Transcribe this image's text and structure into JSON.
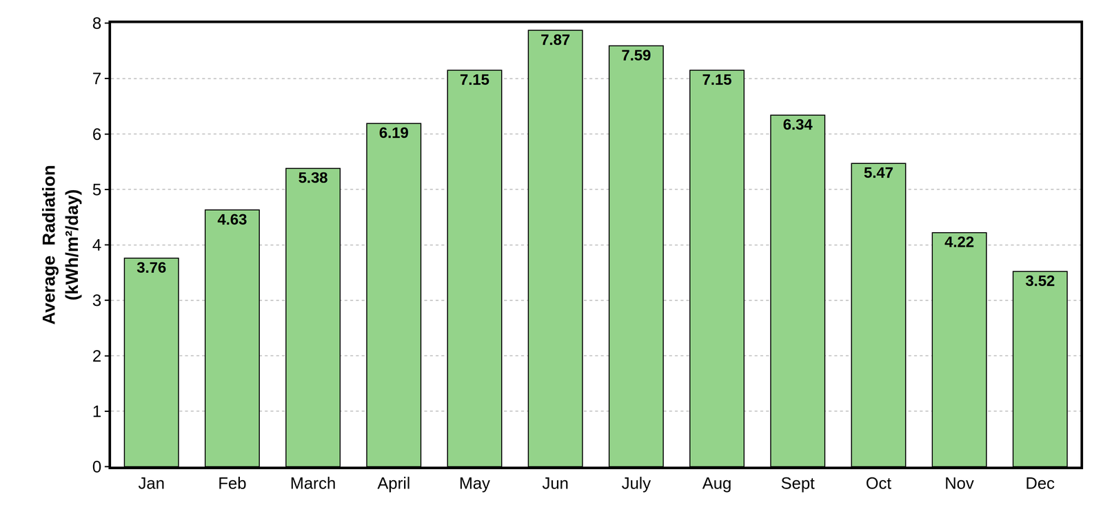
{
  "chart_data": {
    "type": "bar",
    "y_label": [
      "Average  Radiation",
      "(kWh/m²/day)"
    ],
    "categories": [
      "Jan",
      "Feb",
      "March",
      "April",
      "May",
      "Jun",
      "July",
      "Aug",
      "Sept",
      "Oct",
      "Nov",
      "Dec"
    ],
    "values": [
      3.76,
      4.63,
      5.38,
      6.19,
      7.15,
      7.87,
      7.59,
      7.15,
      6.34,
      5.47,
      4.22,
      3.52
    ],
    "color": "#94d38a",
    "ylim": [
      0,
      8
    ],
    "yticks": [
      0,
      1,
      2,
      3,
      4,
      5,
      6,
      7,
      8
    ],
    "grid": true,
    "data_labels": true
  }
}
